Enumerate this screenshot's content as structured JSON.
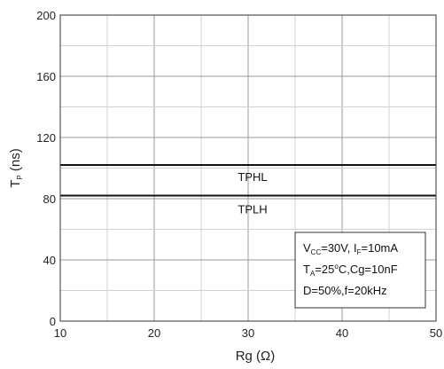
{
  "chart_data": {
    "type": "line",
    "xlabel": "Rg (Ω)",
    "ylabel": {
      "main": "T",
      "sub": "P",
      "unit": " (ns)"
    },
    "xlim": [
      10,
      50
    ],
    "ylim": [
      0,
      200
    ],
    "xticks": [
      10,
      20,
      30,
      40,
      50
    ],
    "yticks": [
      0,
      40,
      80,
      120,
      160,
      200
    ],
    "grid": true,
    "series": [
      {
        "name": "TPHL",
        "x": [
          10,
          20,
          30,
          40,
          50
        ],
        "y": [
          102,
          102,
          102,
          102,
          102
        ]
      },
      {
        "name": "TPLH",
        "x": [
          10,
          20,
          30,
          40,
          50
        ],
        "y": [
          82,
          82,
          82,
          82,
          82
        ]
      }
    ],
    "annotation": {
      "line1": {
        "a": "V",
        "a_sub": "CC",
        "b": "=30V, I",
        "b_sub": "F",
        "c": "=10mA"
      },
      "line2": {
        "a": "T",
        "a_sub": "A",
        "b": "=25",
        "sup": "o",
        "c": "C,Cg=10nF"
      },
      "line3": "D=50%,f=20kHz"
    }
  }
}
